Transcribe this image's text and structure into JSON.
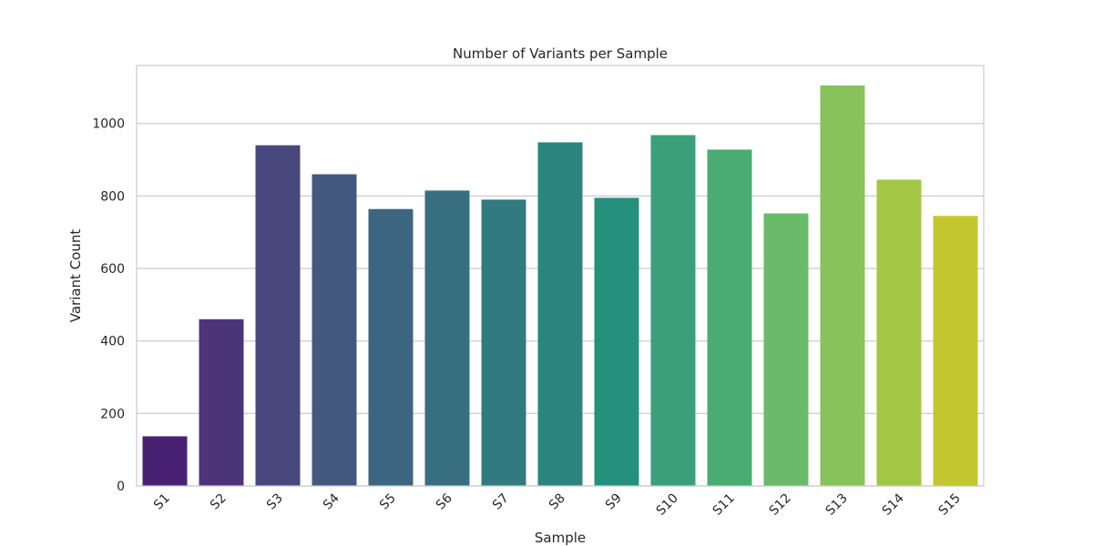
{
  "chart_data": {
    "type": "bar",
    "title": "Number of Variants per Sample",
    "xlabel": "Sample",
    "ylabel": "Variant Count",
    "categories": [
      "S1",
      "S2",
      "S3",
      "S4",
      "S5",
      "S6",
      "S7",
      "S8",
      "S9",
      "S10",
      "S11",
      "S12",
      "S13",
      "S14",
      "S15"
    ],
    "values": [
      137,
      460,
      940,
      860,
      764,
      815,
      790,
      948,
      795,
      968,
      928,
      752,
      1105,
      845,
      745
    ],
    "ylim": [
      0,
      1160
    ],
    "yticks": [
      0,
      200,
      400,
      600,
      800,
      1000
    ],
    "grid": "horizontal",
    "colors": [
      "#482173",
      "#4b3578",
      "#48487e",
      "#43587f",
      "#3c6580",
      "#376f81",
      "#317a80",
      "#2b857e",
      "#25917c",
      "#3a9f7a",
      "#4aac70",
      "#6abb69",
      "#88c25b",
      "#a3c745",
      "#c2c72f"
    ],
    "background": "#ffffff",
    "grid_color": "#cccccc",
    "frame_color": "#cccccc"
  }
}
